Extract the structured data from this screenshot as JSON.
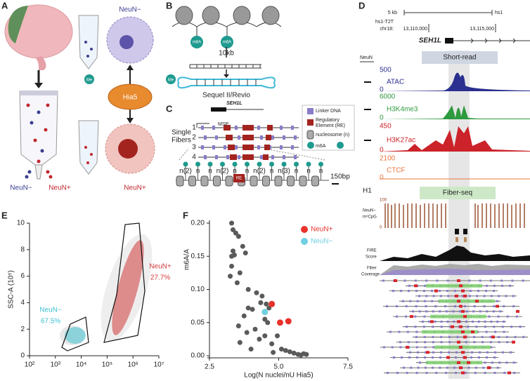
{
  "panel_labels": [
    "A",
    "B",
    "C",
    "D",
    "E",
    "F"
  ],
  "panel_a": {
    "top_label": "NeuN−",
    "enzyme": "Hia5",
    "methyl_left": "Me",
    "methyl_right": "Me",
    "bottom_label": "NeuN+",
    "sorted_minus": "NeuN−",
    "sorted_plus": "NeuN+"
  },
  "panel_b": {
    "mark_left": "m6A",
    "mark_right": "m6A",
    "length": "10kb",
    "platform": "Sequel II/Revio"
  },
  "panel_c": {
    "gene": "SEH1L",
    "msp": "MSP",
    "fibers_line1": "Single",
    "fibers_line2": "Fibers",
    "fiber_numbers": [
      "1",
      "2",
      "3",
      "4"
    ],
    "legend_linker": "Linker DNA",
    "legend_re_line1": "Regulatory",
    "legend_re_line2": "Element (RE)",
    "legend_nucleosome": "nucleosome (n)",
    "legend_m6a": "m6A",
    "linker_labels": [
      "n(2)",
      "n",
      "n",
      "n(2)",
      "n",
      "n",
      "n(2)",
      "n",
      "n(3)",
      "n",
      "n",
      "n"
    ],
    "re": "RE",
    "scale": "150bp"
  },
  "panel_d": {
    "scale": "5 kb",
    "assembly_right": "hs1",
    "assembly": "hs1-T2T",
    "chrom": "chr18:",
    "coord_left": "13,110,000",
    "coord_right": "13,115,000",
    "gene": "SEH1L",
    "sample": "NeuN",
    "short_read": "Short-read",
    "tracks": [
      {
        "name": "ATAC",
        "max": 500,
        "min": 0,
        "color": "#2b2f8f"
      },
      {
        "name": "H3K4me3",
        "max": 6000,
        "min": 0,
        "color": "#2e9a3e"
      },
      {
        "name": "H3K27ac",
        "max": 450,
        "min": 0,
        "color": "#cc2229"
      },
      {
        "name": "CTCF",
        "max": 2100,
        "min": 0,
        "color": "#e8743b"
      }
    ],
    "cell_line": "H1",
    "fiber_seq": "Fiber-seq",
    "cpg_line1": "NeuN−",
    "cpg_line2": "m⁵CpG",
    "cpg_max": 100,
    "cpg_min": 0,
    "fire_line1": "FIRE",
    "fire_line2": "Score",
    "coverage_line1": "Fiber",
    "coverage_line2": "Coverage"
  },
  "chart_data": [
    {
      "type": "flow",
      "ylabel": "SSC-A (10⁵)",
      "log_x": true,
      "xlim": [
        100,
        10000000
      ],
      "xticks": [
        {
          "value": 100,
          "label": "10²"
        },
        {
          "value": 1000,
          "label": "10³"
        },
        {
          "value": 10000,
          "label": "10⁴"
        },
        {
          "value": 100000,
          "label": "10⁵"
        },
        {
          "value": 1000000,
          "label": "10⁶"
        },
        {
          "value": 10000000,
          "label": "10⁷"
        }
      ],
      "ylim": [
        0,
        10
      ],
      "yticks": [
        0,
        2,
        4,
        6,
        8,
        10
      ],
      "populations": {
        "names": [
          "NeuN−",
          "NeuN+"
        ],
        "values": [
          67.5,
          27.7
        ],
        "value_labels": [
          "67.5%",
          "27.7%"
        ],
        "colors": [
          "#3fc0d0",
          "#d23a3a"
        ]
      }
    },
    {
      "type": "scatter",
      "xlabel": "Log(N nuclei/nU Hia5)",
      "ylabel": "m6A/A",
      "xlim": [
        2.5,
        7.5
      ],
      "xticks": [
        2.5,
        {
          "value": 5,
          "label": "5.0"
        },
        7.5
      ],
      "ylim": [
        0,
        0.2
      ],
      "yticks": [
        {
          "value": 0,
          "label": "0.00"
        },
        {
          "value": 0.05,
          "label": "0.05"
        },
        {
          "value": 0.1,
          "label": "0.10"
        },
        {
          "value": 0.15,
          "label": "0.15"
        },
        {
          "value": 0.2,
          "label": "0.20"
        }
      ],
      "series": [
        {
          "color": "#5a5a5a",
          "x": [
            3.3,
            3.35,
            3.45,
            3.55,
            3.7,
            3.8,
            3.35,
            3.3,
            3.4,
            3.3,
            3.25,
            3.6,
            3.5,
            3.9,
            4.2,
            4.4,
            4.55,
            4.65,
            4.35,
            4.05,
            3.75,
            3.55,
            3.85,
            4.15,
            4.5,
            4.6,
            4.3,
            4.5,
            4.75,
            4.95,
            5.1,
            5.25,
            5.4,
            5.55,
            5.7,
            5.8,
            5.9,
            6.0,
            3.6,
            4.0,
            4.8,
            3.9
          ],
          "values": [
            0.2,
            0.19,
            0.185,
            0.18,
            0.165,
            0.155,
            0.158,
            0.15,
            0.152,
            0.135,
            0.12,
            0.125,
            0.11,
            0.1,
            0.095,
            0.09,
            0.078,
            0.072,
            0.08,
            0.07,
            0.06,
            0.045,
            0.035,
            0.04,
            0.055,
            0.05,
            0.025,
            0.03,
            0.018,
            0.03,
            0.01,
            0.008,
            0.006,
            0.004,
            0.002,
            0.001,
            0.003,
            0.002,
            0.02,
            0.01,
            0.005,
            0.072
          ]
        },
        {
          "name": "NeuN+",
          "color": "#e8322b",
          "x": [
            4.75,
            5.05,
            5.35
          ],
          "values": [
            0.078,
            0.05,
            0.052
          ]
        },
        {
          "name": "NeuN−",
          "color": "#6fd0e0",
          "x": [
            4.5
          ],
          "values": [
            0.066
          ]
        }
      ]
    }
  ]
}
